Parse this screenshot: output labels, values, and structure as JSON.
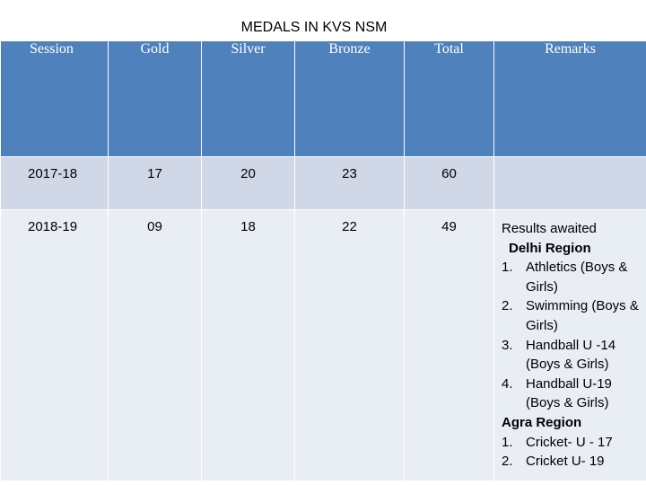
{
  "title": "MEDALS IN KVS NSM",
  "table": {
    "headers": [
      "Session",
      "Gold",
      "Silver",
      "Bronze",
      "Total",
      "Remarks"
    ],
    "rows": [
      {
        "session": "2017-18",
        "gold": "17",
        "silver": "20",
        "bronze": "23",
        "total": "60",
        "remarks": ""
      },
      {
        "session": "2018-19",
        "gold": "09",
        "silver": "18",
        "bronze": "22",
        "total": "49"
      }
    ]
  },
  "remarks": {
    "intro": "Results awaited",
    "delhi_region": {
      "label": "Delhi Region",
      "items": [
        {
          "num": "1.",
          "text": "Athletics (Boys & Girls)"
        },
        {
          "num": "2.",
          "text": "Swimming (Boys & Girls)"
        },
        {
          "num": "3.",
          "text": "Handball U -14 (Boys & Girls)"
        },
        {
          "num": "4.",
          "text": "Handball U-19 (Boys & Girls)"
        }
      ]
    },
    "agra_region": {
      "label": "Agra Region",
      "items": [
        {
          "num": "1.",
          "text": "Cricket- U - 17"
        },
        {
          "num": "2.",
          "text": "Cricket  U-  19"
        }
      ]
    }
  }
}
